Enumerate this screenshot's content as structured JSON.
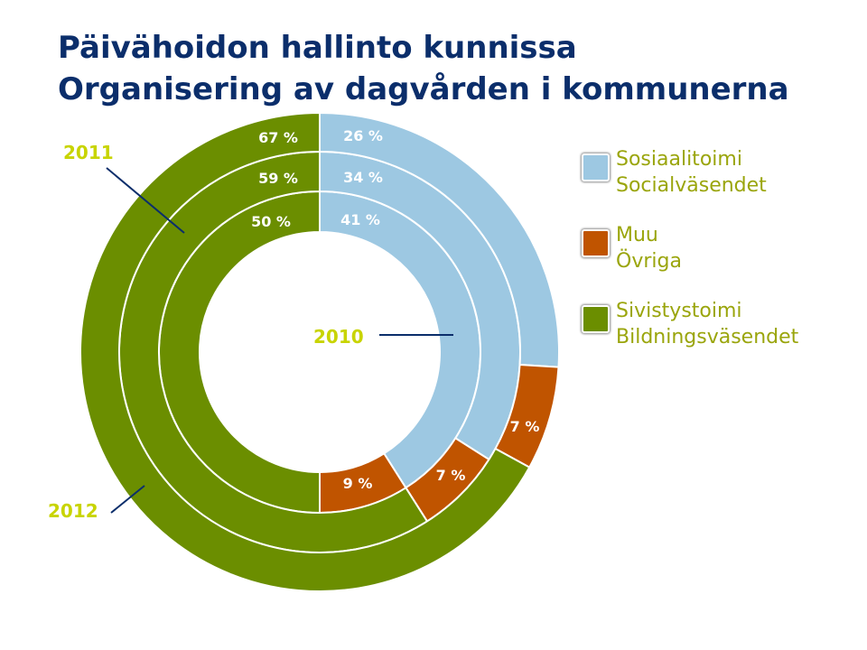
{
  "title": {
    "line1": "Päivähoidon hallinto kunnissa",
    "line2": "Organisering av dagvården i kommunerna"
  },
  "legend": [
    {
      "fi": "Sosiaalitoimi",
      "sv": "Socialväsendet",
      "color": "#9dc8e2"
    },
    {
      "fi": "Muu",
      "sv": "Övriga",
      "color": "#c05400"
    },
    {
      "fi": "Sivistystoimi",
      "sv": "Bildningsväsendet",
      "color": "#6b8e00"
    }
  ],
  "chart_data": {
    "type": "pie",
    "style": "concentric-donut",
    "categories": [
      "Sosiaalitoimi / Socialväsendet",
      "Muu / Övriga",
      "Sivistystoimi / Bildningsväsendet"
    ],
    "colors": [
      "#9dc8e2",
      "#c05400",
      "#6b8e00"
    ],
    "series": [
      {
        "name": "2010",
        "values": [
          41,
          9,
          50
        ],
        "labels": [
          "41 %",
          "9 %",
          "50 %"
        ]
      },
      {
        "name": "2011",
        "values": [
          34,
          7,
          59
        ],
        "labels": [
          "34 %",
          "7 %",
          "59 %"
        ]
      },
      {
        "name": "2012",
        "values": [
          26,
          7,
          67
        ],
        "labels": [
          "26 %",
          "7 %",
          "67 %"
        ]
      }
    ],
    "ring_order": "2010 inner, 2011 middle, 2012 outer",
    "legend_position": "right",
    "label_color": "#c8d400",
    "leader_color": "#0b2e6b"
  }
}
